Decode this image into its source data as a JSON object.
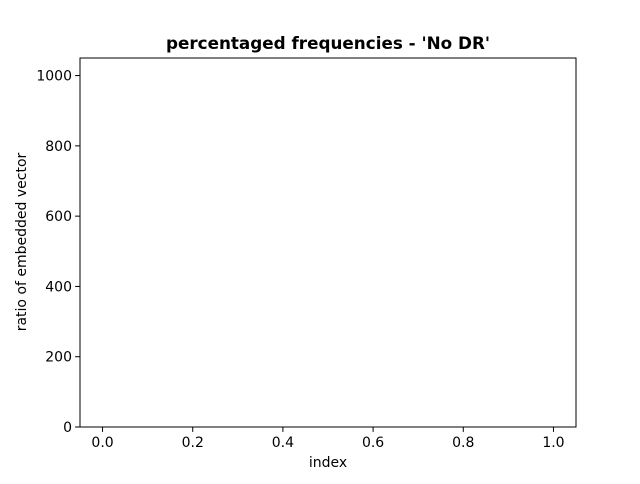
{
  "chart_data": {
    "type": "bar",
    "title": "percentaged frequencies - 'No DR'",
    "xlabel": "index",
    "ylabel": "ratio of embedded vector",
    "x_ticks": [
      0.0,
      0.2,
      0.4,
      0.6,
      0.8,
      1.0
    ],
    "x_tick_labels": [
      "0.0",
      "0.2",
      "0.4",
      "0.6",
      "0.8",
      "1.0"
    ],
    "y_ticks": [
      0,
      200,
      400,
      600,
      800,
      1000
    ],
    "y_tick_labels": [
      "0",
      "200",
      "400",
      "600",
      "800",
      "1000"
    ],
    "xlim": [
      -0.05,
      1.05
    ],
    "ylim": [
      0,
      1050
    ],
    "grid": false,
    "categories": [],
    "values": []
  }
}
